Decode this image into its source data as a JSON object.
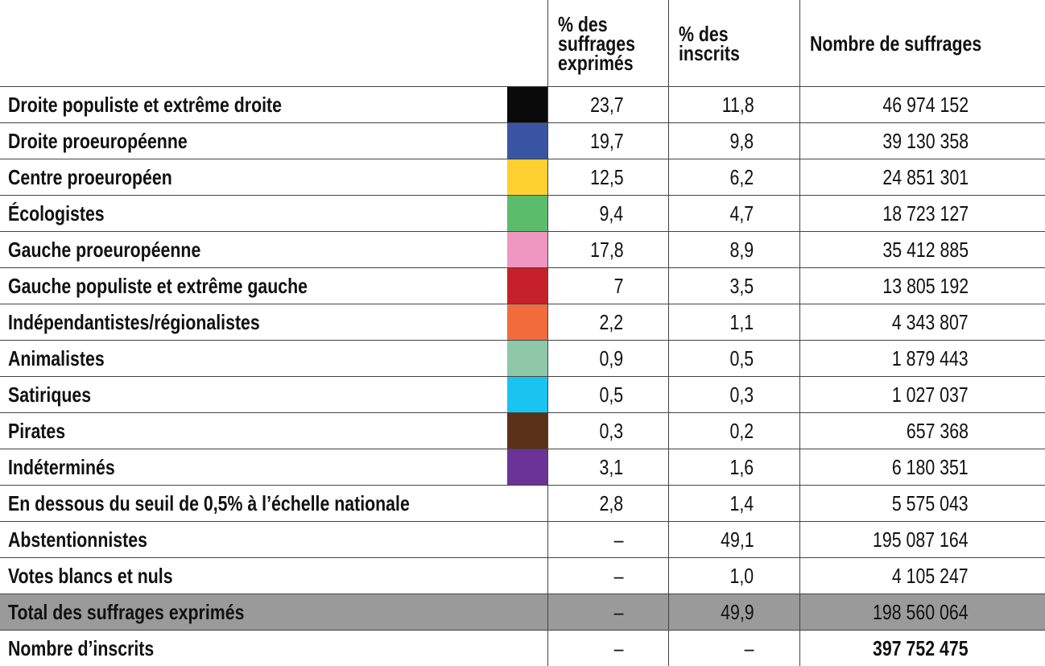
{
  "table": {
    "headers": [
      "% des suffrages exprimés",
      "% des inscrits",
      "Nombre de suffrages"
    ],
    "rows": [
      {
        "label": "Droite populiste et extrême droite",
        "color": "#0a0a0a",
        "cells": [
          "23,7",
          "11,8",
          "46 974 152"
        ]
      },
      {
        "label": "Droite proeuropéenne",
        "color": "#3a55a4",
        "cells": [
          "19,7",
          "9,8",
          "39 130 358"
        ]
      },
      {
        "label": "Centre proeuropéen",
        "color": "#fdd02f",
        "cells": [
          "12,5",
          "6,2",
          "24 851 301"
        ]
      },
      {
        "label": "Écologistes",
        "color": "#5bbd6b",
        "cells": [
          "9,4",
          "4,7",
          "18 723 127"
        ]
      },
      {
        "label": "Gauche proeuropéenne",
        "color": "#f097c1",
        "cells": [
          "17,8",
          "8,9",
          "35 412 885"
        ]
      },
      {
        "label": "Gauche populiste et extrême gauche",
        "color": "#c5202a",
        "cells": [
          "7",
          "3,5",
          "13 805 192"
        ]
      },
      {
        "label": "Indépendantistes/régionalistes",
        "color": "#f26b3c",
        "cells": [
          "2,2",
          "1,1",
          "4 343 807"
        ]
      },
      {
        "label": "Animalistes",
        "color": "#8fc8a8",
        "cells": [
          "0,9",
          "0,5",
          "1 879 443"
        ]
      },
      {
        "label": "Satiriques",
        "color": "#19c4f1",
        "cells": [
          "0,5",
          "0,3",
          "1 027 037"
        ]
      },
      {
        "label": "Pirates",
        "color": "#5a3217",
        "cells": [
          "0,3",
          "0,2",
          "657 368"
        ]
      },
      {
        "label": "Indéterminés",
        "color": "#6c3396",
        "cells": [
          "3,1",
          "1,6",
          "6 180 351"
        ]
      },
      {
        "label": "En dessous du seuil de 0,5% à l’échelle nationale",
        "cells": [
          "2,8",
          "1,4",
          "5 575 043"
        ]
      },
      {
        "label": "Abstentionnistes",
        "cells": [
          "–",
          "49,1",
          "195 087 164"
        ]
      },
      {
        "label": "Votes blancs et nuls",
        "cells": [
          "–",
          "1,0",
          "4 105 247"
        ]
      },
      {
        "label": "Total des suffrages exprimés",
        "background": "#9a9a9a",
        "cells": [
          "–",
          "49,9",
          "198 560 064"
        ]
      },
      {
        "label": "Nombre d’inscrits",
        "bold_last": true,
        "cells": [
          "–",
          "–",
          "397 752 475"
        ]
      }
    ]
  }
}
